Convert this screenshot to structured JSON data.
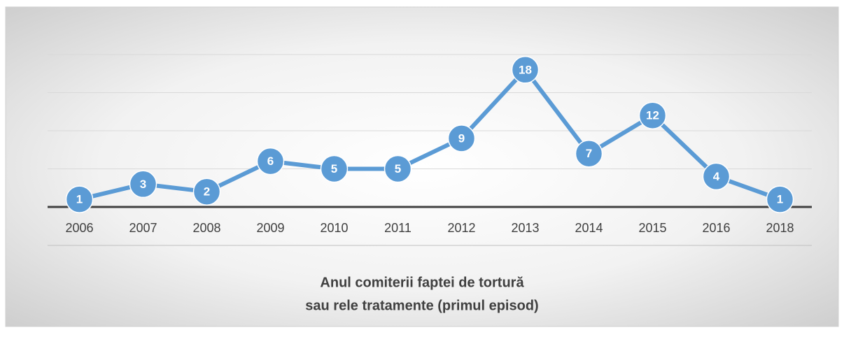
{
  "chart_data": {
    "type": "line",
    "title": [
      "Anul comiterii faptei de tortură",
      "sau rele tratamente (primul episod)"
    ],
    "categories": [
      "2006",
      "2007",
      "2008",
      "2009",
      "2010",
      "2011",
      "2012",
      "2013",
      "2014",
      "2015",
      "2016",
      "2018"
    ],
    "values": [
      1,
      3,
      2,
      6,
      5,
      5,
      9,
      18,
      7,
      12,
      4,
      1
    ],
    "color": "#5b9bd5",
    "ylim": [
      0,
      20
    ],
    "yticks": [
      0,
      5,
      10,
      15,
      20
    ],
    "grid": true
  }
}
